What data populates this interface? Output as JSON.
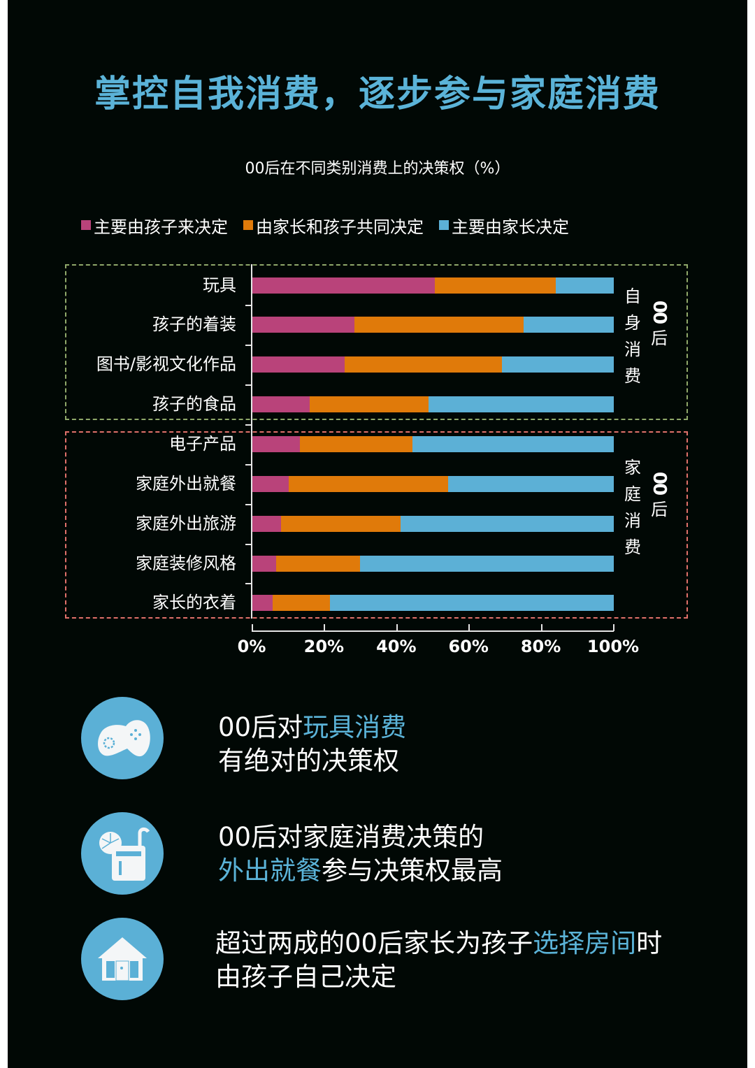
{
  "title": "掌控自我消费，逐步参与家庭消费",
  "subtitle": "00后在不同类别消费上的决策权（%）",
  "colors": {
    "background": "#010805",
    "accent": "#5bb3d8",
    "child": "#b9437a",
    "joint": "#e07a0a",
    "parent": "#5cb0d6",
    "self_box": "#8fa86a",
    "family_box": "#e0706a"
  },
  "legend": [
    {
      "label": "主要由孩子来决定",
      "color": "#b9437a"
    },
    {
      "label": "由家长和孩子共同决定",
      "color": "#e07a0a"
    },
    {
      "label": "主要由家长决定",
      "color": "#5cb0d6"
    }
  ],
  "groups": {
    "self": {
      "col1": "00后",
      "col2": "自身消费"
    },
    "family": {
      "col1": "00后",
      "col2": "家庭消费"
    }
  },
  "chart_data": {
    "type": "bar",
    "orientation": "horizontal",
    "stacked": true,
    "percent_stacked": true,
    "title": "00后在不同类别消费上的决策权（%）",
    "xlabel": "",
    "ylabel": "",
    "xlim": [
      0,
      100
    ],
    "x_ticks": [
      "0%",
      "20%",
      "40%",
      "60%",
      "80%",
      "100%"
    ],
    "legend_position": "top",
    "grid": false,
    "categories": [
      "玩具",
      "孩子的着装",
      "图书/影视文化作品",
      "孩子的食品",
      "电子产品",
      "家庭外出就餐",
      "家庭外出旅游",
      "家庭装修风格",
      "家长的衣着"
    ],
    "category_groups": [
      {
        "name": "00后自身消费",
        "categories": [
          "玩具",
          "孩子的着装",
          "图书/影视文化作品",
          "孩子的食品"
        ]
      },
      {
        "name": "00后家庭消费",
        "categories": [
          "电子产品",
          "家庭外出就餐",
          "家庭外出旅游",
          "家庭装修风格",
          "家长的衣着"
        ]
      }
    ],
    "series": [
      {
        "name": "主要由孩子来决定",
        "color": "#b9437a",
        "values": [
          50.5,
          28.2,
          25.5,
          15.9,
          13.2,
          10.1,
          7.9,
          6.5,
          5.6
        ]
      },
      {
        "name": "由家长和孩子共同决定",
        "color": "#e07a0a",
        "values": [
          33.5,
          46.8,
          43.5,
          32.8,
          31.1,
          44.1,
          33.1,
          23.3,
          15.9
        ]
      },
      {
        "name": "主要由家长决定",
        "color": "#5cb0d6",
        "values": [
          16.0,
          25.0,
          31.0,
          51.3,
          55.7,
          45.8,
          59.0,
          70.2,
          78.5
        ]
      }
    ]
  },
  "facts": [
    {
      "icon": "gamepad-icon",
      "line1": [
        {
          "t": "00后对",
          "hl": false
        },
        {
          "t": "玩具消费",
          "hl": true
        }
      ],
      "line2": [
        {
          "t": "有绝对的决策权",
          "hl": false
        }
      ]
    },
    {
      "icon": "drink-icon",
      "line1": [
        {
          "t": "00后对家庭消费决策的",
          "hl": false
        }
      ],
      "line2": [
        {
          "t": "外出就餐",
          "hl": true
        },
        {
          "t": "参与决策权最高",
          "hl": false
        }
      ]
    },
    {
      "icon": "house-icon",
      "line1": [
        {
          "t": "超过两成的00后家长为孩子",
          "hl": false
        },
        {
          "t": "选择房间",
          "hl": true
        },
        {
          "t": "时",
          "hl": false
        }
      ],
      "line2": [
        {
          "t": "由孩子自己决定",
          "hl": false
        }
      ]
    }
  ]
}
